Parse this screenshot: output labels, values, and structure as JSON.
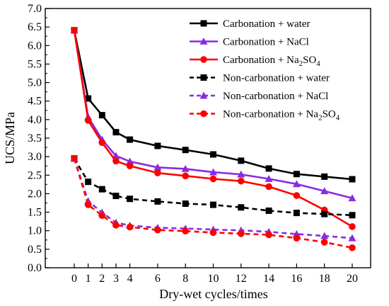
{
  "chart_data": {
    "type": "line",
    "xlabel": "Dry-wet cycles/times",
    "ylabel": "UCS/MPa",
    "ylim": [
      0.0,
      7.0
    ],
    "yticks": [
      "0.0",
      "0.5",
      "1.0",
      "1.5",
      "2.0",
      "2.5",
      "3.0",
      "3.5",
      "4.0",
      "4.5",
      "5.0",
      "5.5",
      "6.0",
      "6.5",
      "7.0"
    ],
    "x": [
      0,
      1,
      2,
      3,
      4,
      6,
      8,
      10,
      12,
      14,
      16,
      18,
      20
    ],
    "xtick_labels": [
      "0",
      "1",
      "2",
      "3",
      "4",
      "6",
      "8",
      "10",
      "12",
      "14",
      "16",
      "18",
      "20"
    ],
    "legend_position": "top-right",
    "series": [
      {
        "name": "Carbonation + water",
        "name_main": "Carbonation + water",
        "name_sub": "",
        "name_tail": "",
        "color": "#000000",
        "marker": "square",
        "dash": "solid",
        "values": [
          6.41,
          4.57,
          4.12,
          3.66,
          3.46,
          3.29,
          3.18,
          3.06,
          2.89,
          2.68,
          2.53,
          2.46,
          2.39
        ]
      },
      {
        "name": "Carbonation + NaCl",
        "name_main": "Carbonation + NaCl",
        "name_sub": "",
        "name_tail": "",
        "color": "#8a2be2",
        "marker": "triangle",
        "dash": "solid",
        "values": [
          6.41,
          4.07,
          3.46,
          3.02,
          2.87,
          2.71,
          2.67,
          2.58,
          2.52,
          2.4,
          2.26,
          2.07,
          1.88
        ]
      },
      {
        "name": "Carbonation + Na2SO4",
        "name_main": "Carbonation + Na",
        "name_sub": "2",
        "name_tail": "SO4",
        "color": "#ff0000",
        "marker": "circle",
        "dash": "solid",
        "values": [
          6.41,
          3.98,
          3.38,
          2.88,
          2.75,
          2.56,
          2.48,
          2.4,
          2.34,
          2.19,
          1.95,
          1.56,
          1.11
        ]
      },
      {
        "name": "Non-carbonation + water",
        "name_main": "Non-carbonation + water",
        "name_sub": "",
        "name_tail": "",
        "color": "#000000",
        "marker": "square",
        "dash": "dashed",
        "values": [
          2.95,
          2.32,
          2.12,
          1.94,
          1.86,
          1.79,
          1.73,
          1.7,
          1.63,
          1.54,
          1.48,
          1.45,
          1.42
        ]
      },
      {
        "name": "Non-carbonation + NaCl",
        "name_main": "Non-carbonation + NaCl",
        "name_sub": "",
        "name_tail": "",
        "color": "#8a2be2",
        "marker": "triangle",
        "dash": "dashed",
        "values": [
          2.95,
          1.8,
          1.49,
          1.22,
          1.14,
          1.08,
          1.06,
          1.03,
          1.01,
          0.97,
          0.91,
          0.86,
          0.8
        ]
      },
      {
        "name": "Non-carbonation + Na2SO4",
        "name_main": "Non-carbonation + Na",
        "name_sub": "2",
        "name_tail": "SO4",
        "color": "#ff0000",
        "marker": "circle",
        "dash": "dashed",
        "values": [
          2.95,
          1.7,
          1.41,
          1.15,
          1.1,
          1.02,
          0.99,
          0.95,
          0.92,
          0.89,
          0.8,
          0.69,
          0.54
        ]
      }
    ]
  }
}
